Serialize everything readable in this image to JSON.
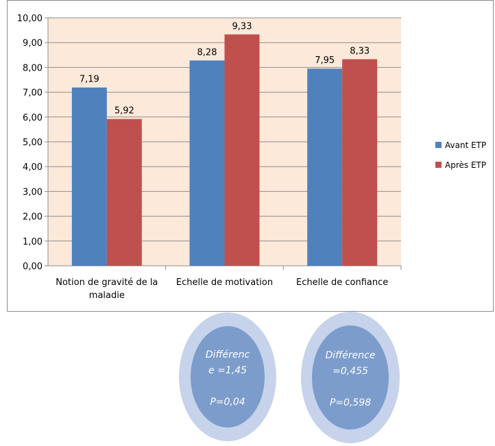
{
  "chart_data": {
    "type": "bar",
    "categories": [
      [
        "Notion de gravité de la",
        "maladie"
      ],
      [
        "Echelle de motivation"
      ],
      [
        "Echelle de confiance"
      ]
    ],
    "series": [
      {
        "name": "Avant ETP",
        "color": "#4f81bd",
        "values": [
          7.19,
          8.28,
          7.95
        ],
        "labels": [
          "7,19",
          "8,28",
          "7,95"
        ]
      },
      {
        "name": "Après ETP",
        "color": "#c0504d",
        "values": [
          5.92,
          9.33,
          8.33
        ],
        "labels": [
          "5,92",
          "9,33",
          "8,33"
        ]
      }
    ],
    "ylim": [
      0,
      10
    ],
    "yticks": [
      "0,00",
      "1,00",
      "2,00",
      "3,00",
      "4,00",
      "5,00",
      "6,00",
      "7,00",
      "8,00",
      "9,00",
      "10,00"
    ],
    "plot_background": "#fde9d9",
    "grid": true,
    "legend": "right"
  },
  "annotations": [
    {
      "lines": [
        "Différenc",
        "e =1,45",
        "",
        "P=0,04"
      ]
    },
    {
      "lines": [
        "Différence",
        "=0,455",
        "",
        "P=0,598"
      ]
    }
  ]
}
